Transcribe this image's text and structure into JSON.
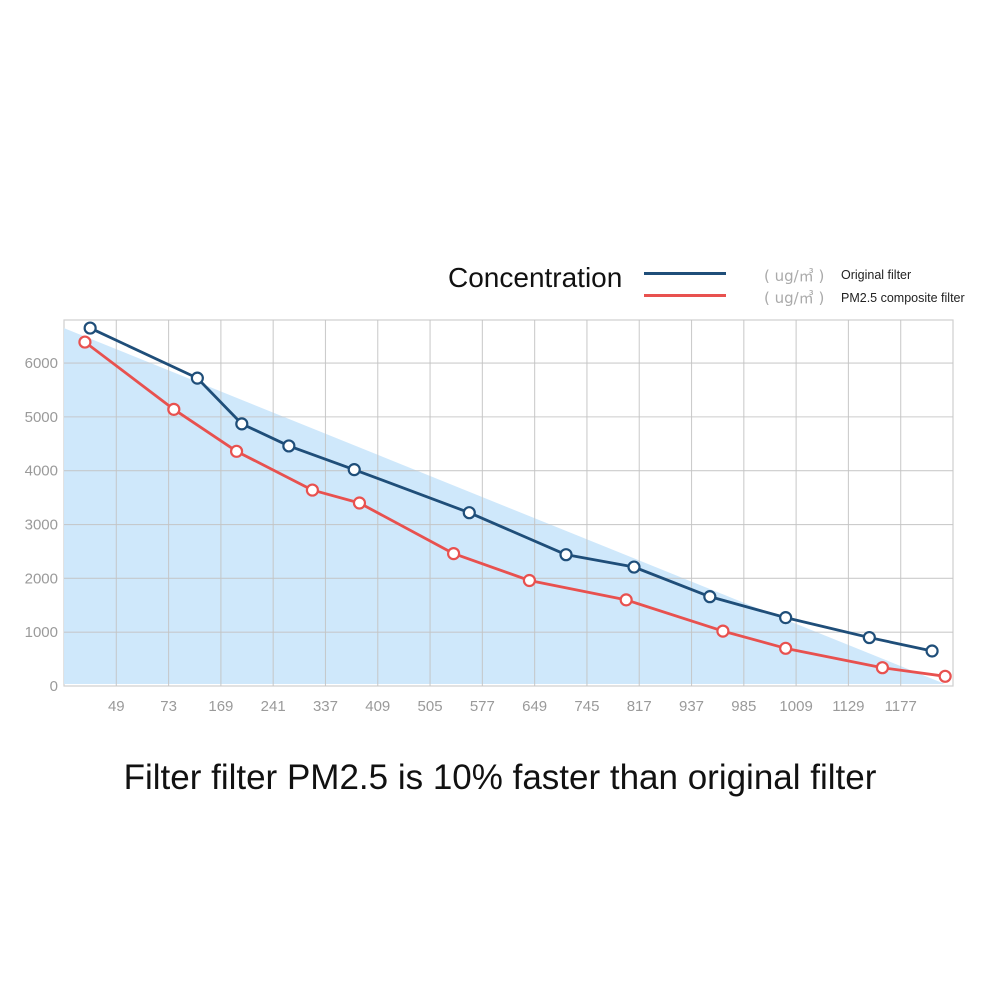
{
  "legend": {
    "title": "Concentration",
    "unit": "( ug/㎥ )",
    "items": [
      {
        "name": "Original filter",
        "color": "#1f4e79"
      },
      {
        "name": "PM2.5 composite filter",
        "color": "#e8514f"
      }
    ]
  },
  "caption": "Filter filter PM2.5 is 10% faster than original filter",
  "chart_data": {
    "type": "line",
    "x_tick_labels": [
      "49",
      "73",
      "169",
      "241",
      "337",
      "409",
      "505",
      "577",
      "649",
      "745",
      "817",
      "937",
      "985",
      "1009",
      "1129",
      "1177"
    ],
    "y_ticks": [
      0,
      1000,
      2000,
      3000,
      4000,
      5000,
      6000
    ],
    "ylim": [
      0,
      6800
    ],
    "grid": true,
    "legend_position": "top-right",
    "area": {
      "color": "#cce7fb",
      "values": [
        6650,
        0
      ]
    },
    "series": [
      {
        "name": "Original filter",
        "color": "#1f4e79",
        "points": [
          {
            "x": 0.5,
            "y": 6650
          },
          {
            "x": 2.55,
            "y": 5720
          },
          {
            "x": 3.4,
            "y": 4870
          },
          {
            "x": 4.3,
            "y": 4460
          },
          {
            "x": 5.55,
            "y": 4020
          },
          {
            "x": 7.75,
            "y": 3220
          },
          {
            "x": 9.6,
            "y": 2440
          },
          {
            "x": 10.9,
            "y": 2210
          },
          {
            "x": 12.35,
            "y": 1660
          },
          {
            "x": 13.8,
            "y": 1270
          },
          {
            "x": 15.4,
            "y": 900
          },
          {
            "x": 16.6,
            "y": 650
          }
        ]
      },
      {
        "name": "PM2.5 composite filter",
        "color": "#e8514f",
        "points": [
          {
            "x": 0.4,
            "y": 6390
          },
          {
            "x": 2.1,
            "y": 5140
          },
          {
            "x": 3.3,
            "y": 4360
          },
          {
            "x": 4.75,
            "y": 3640
          },
          {
            "x": 5.65,
            "y": 3400
          },
          {
            "x": 7.45,
            "y": 2460
          },
          {
            "x": 8.9,
            "y": 1960
          },
          {
            "x": 10.75,
            "y": 1600
          },
          {
            "x": 12.6,
            "y": 1020
          },
          {
            "x": 13.8,
            "y": 700
          },
          {
            "x": 15.65,
            "y": 340
          },
          {
            "x": 16.85,
            "y": 180
          }
        ]
      }
    ]
  }
}
